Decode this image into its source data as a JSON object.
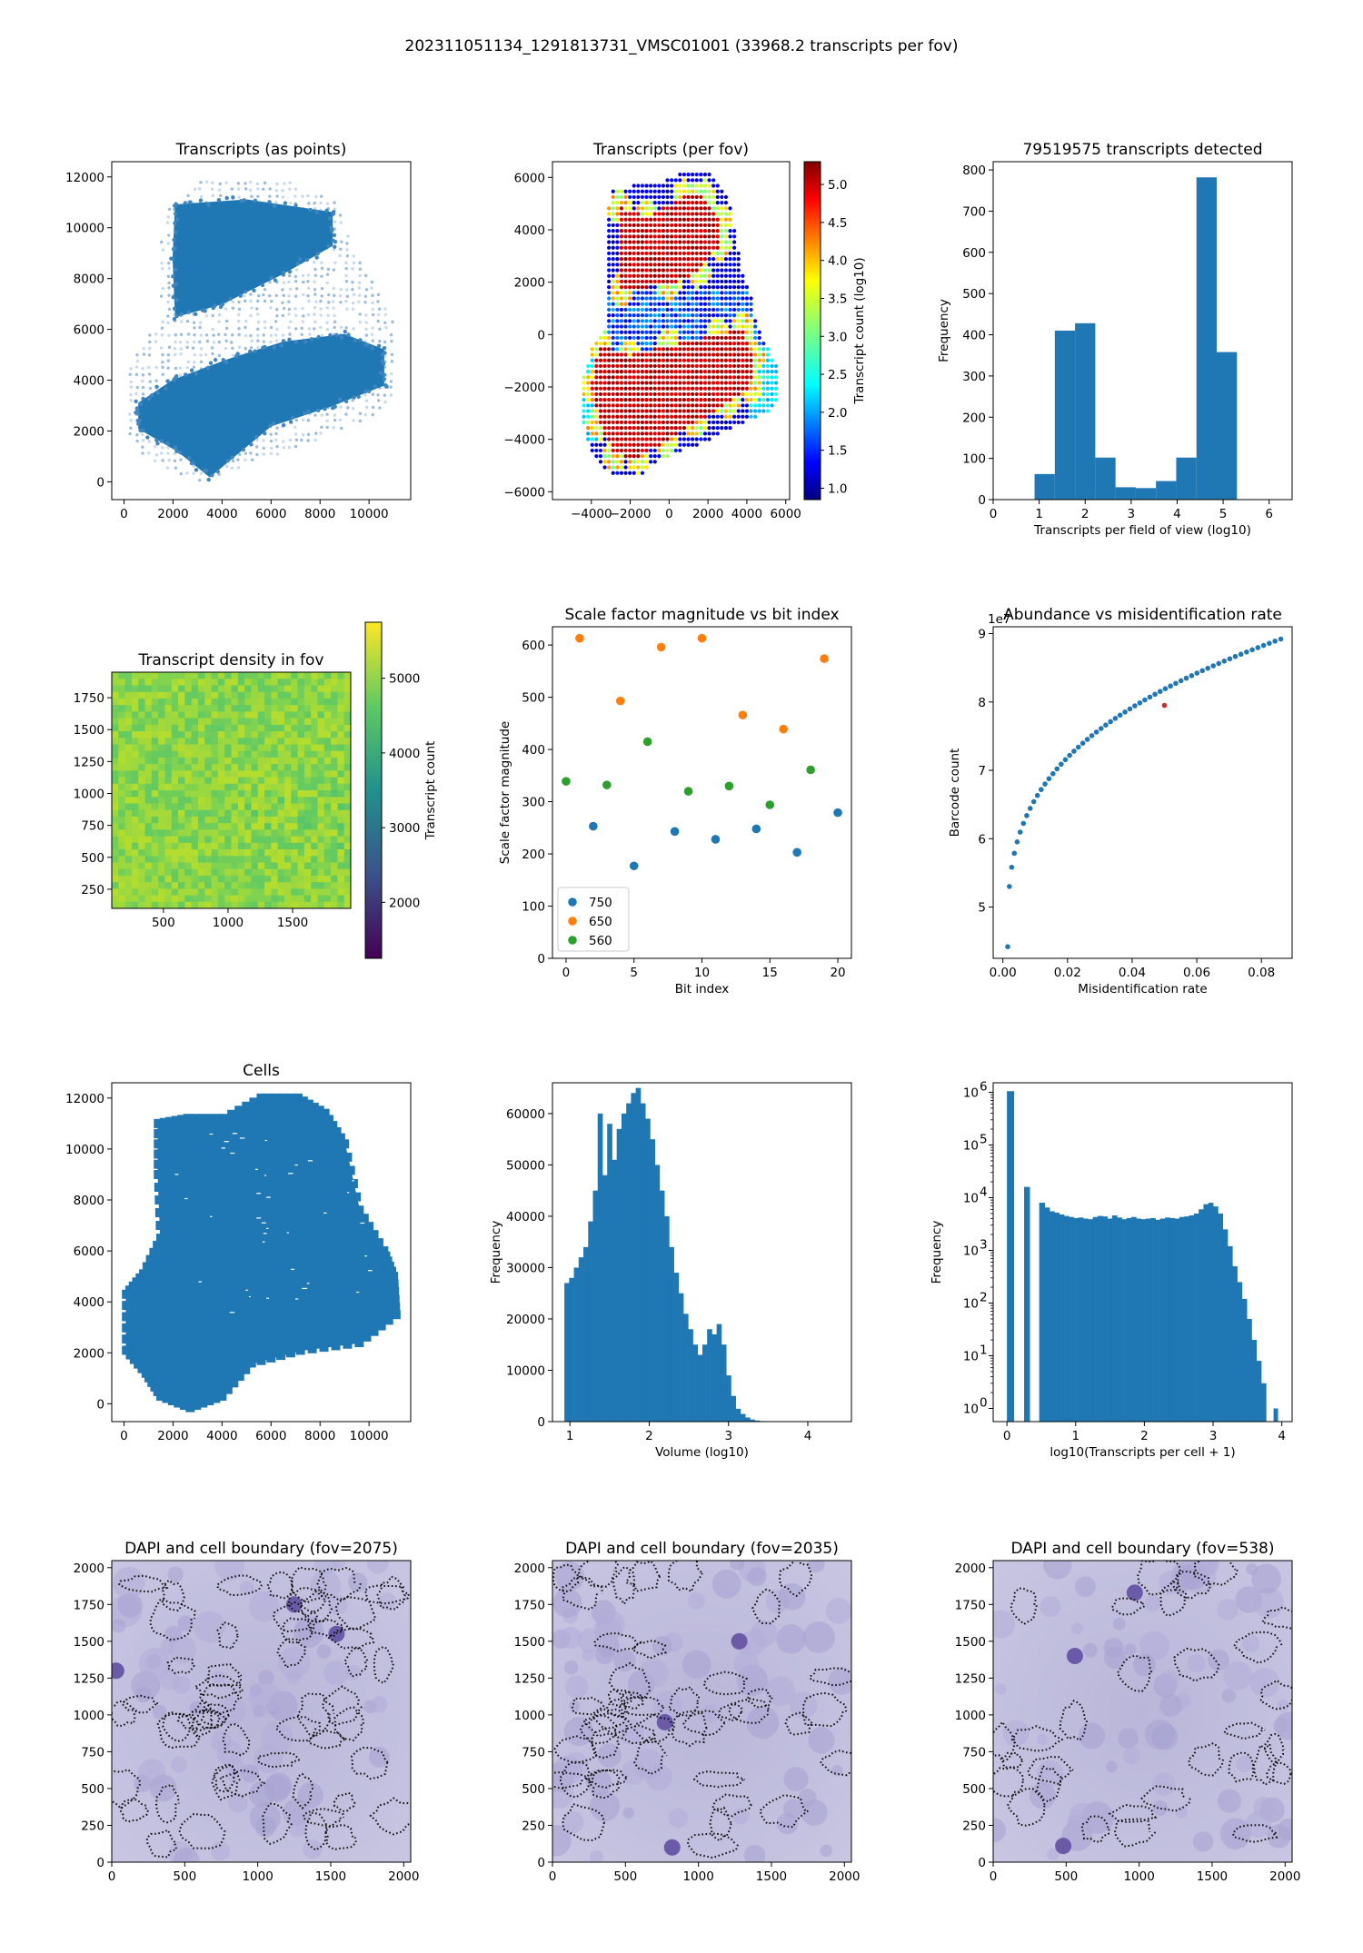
{
  "figure": {
    "suptitle": "202311051134_1291813731_VMSC01001 (33968.2 transcripts per fov)",
    "accent_color": "#1f77b4"
  },
  "chart_data": [
    {
      "id": "transcripts_points",
      "type": "scatter",
      "title": "Transcripts (as points)",
      "xlabel": "",
      "ylabel": "",
      "xlim": [
        -500,
        11700
      ],
      "ylim": [
        -700,
        12600
      ],
      "xticks": [
        0,
        2000,
        4000,
        6000,
        8000,
        10000
      ],
      "yticks": [
        0,
        2000,
        4000,
        6000,
        8000,
        10000,
        12000
      ],
      "regions": [
        {
          "name": "upper dense block",
          "polygon": [
            [
              2100,
              10900
            ],
            [
              5000,
              11100
            ],
            [
              8500,
              10600
            ],
            [
              8500,
              9300
            ],
            [
              6500,
              8200
            ],
            [
              4000,
              7000
            ],
            [
              2100,
              6500
            ],
            [
              2000,
              8800
            ]
          ]
        },
        {
          "name": "lower dense block",
          "polygon": [
            [
              600,
              3100
            ],
            [
              2000,
              4000
            ],
            [
              4200,
              4800
            ],
            [
              6500,
              5500
            ],
            [
              9000,
              5800
            ],
            [
              10600,
              5200
            ],
            [
              10600,
              3800
            ],
            [
              8500,
              3000
            ],
            [
              6000,
              2200
            ],
            [
              3500,
              200
            ],
            [
              2200,
              1200
            ],
            [
              600,
              2100
            ]
          ]
        }
      ],
      "grid": false
    },
    {
      "id": "transcripts_per_fov",
      "type": "scatter",
      "title": "Transcripts (per fov)",
      "xlabel": "",
      "ylabel": "",
      "xlim": [
        -6000,
        6200
      ],
      "ylim": [
        -6300,
        6600
      ],
      "xticks": [
        -4000,
        -2000,
        0,
        2000,
        4000,
        6000
      ],
      "xticklabels": [
        "−4000",
        "−2000",
        "0",
        "2000",
        "4000",
        "6000"
      ],
      "yticks": [
        -6000,
        -4000,
        -2000,
        0,
        2000,
        4000,
        6000
      ],
      "yticklabels": [
        "−6000",
        "−4000",
        "−2000",
        "0",
        "2000",
        "4000",
        "6000"
      ],
      "colorbar": {
        "label": "Transcript count (log10)",
        "range": [
          0.85,
          5.3
        ],
        "ticks": [
          1.0,
          1.5,
          2.0,
          2.5,
          3.0,
          3.5,
          4.0,
          4.5,
          5.0
        ],
        "ticklabels": [
          "1.0",
          "1.5",
          "2.0",
          "2.5",
          "3.0",
          "3.5",
          "4.0",
          "4.5",
          "5.0"
        ],
        "colormap": "jet"
      },
      "grid": false
    },
    {
      "id": "transcripts_hist",
      "type": "bar",
      "title": "79519575 transcripts detected",
      "xlabel": "Transcripts per field of view (log10)",
      "ylabel": "Frequency",
      "xlim": [
        0,
        6.5
      ],
      "ylim": [
        0,
        820
      ],
      "xticks": [
        0,
        1,
        2,
        3,
        4,
        5,
        6
      ],
      "yticks": [
        0,
        100,
        200,
        300,
        400,
        500,
        600,
        700,
        800
      ],
      "bin_edges": [
        0.9,
        1.34,
        1.78,
        2.22,
        2.66,
        3.1,
        3.54,
        3.98,
        4.42,
        4.86,
        5.3
      ],
      "values": [
        62,
        410,
        428,
        102,
        30,
        28,
        45,
        102,
        782,
        358
      ],
      "grid": false
    },
    {
      "id": "density_in_fov",
      "type": "heatmap",
      "title": "Transcript density in fov",
      "xlabel": "",
      "ylabel": "",
      "xlim": [
        100,
        1950
      ],
      "ylim": [
        100,
        1950
      ],
      "xticks": [
        500,
        1000,
        1500
      ],
      "yticks": [
        250,
        500,
        750,
        1000,
        1250,
        1500,
        1750
      ],
      "colorbar": {
        "label": "Transcript count",
        "range": [
          1250,
          5750
        ],
        "ticks": [
          2000,
          3000,
          4000,
          5000
        ],
        "colormap": "viridis"
      },
      "value_range": [
        4100,
        5200
      ],
      "grid": false
    },
    {
      "id": "scale_factor",
      "type": "scatter",
      "title": "Scale factor magnitude vs bit index",
      "xlabel": "Bit index",
      "ylabel": "Scale factor magnitude",
      "xlim": [
        -1,
        21
      ],
      "ylim": [
        0,
        635
      ],
      "xticks": [
        0,
        5,
        10,
        15,
        20
      ],
      "yticks": [
        0,
        100,
        200,
        300,
        400,
        500,
        600
      ],
      "legend_position": "lower-left",
      "series": [
        {
          "name": "750",
          "color": "#1f77b4",
          "x": [
            2,
            5,
            8,
            11,
            14,
            17,
            20
          ],
          "y": [
            253,
            177,
            243,
            228,
            248,
            203,
            279
          ]
        },
        {
          "name": "650",
          "color": "#ff7f0e",
          "x": [
            1,
            4,
            7,
            10,
            13,
            16,
            19
          ],
          "y": [
            613,
            493,
            596,
            613,
            466,
            439,
            574
          ]
        },
        {
          "name": "560",
          "color": "#2ca02c",
          "x": [
            0,
            3,
            6,
            9,
            12,
            15,
            18
          ],
          "y": [
            339,
            332,
            415,
            320,
            330,
            294,
            361
          ]
        }
      ],
      "grid": false
    },
    {
      "id": "abundance_misid",
      "type": "scatter",
      "title": "Abundance vs misidentification rate",
      "xlabel": "Misidentification rate",
      "ylabel": "Barcode count",
      "offset_label": "1e7",
      "xlim": [
        -0.003,
        0.0895
      ],
      "ylim": [
        4.25,
        9.1
      ],
      "xticks": [
        0.0,
        0.02,
        0.04,
        0.06,
        0.08
      ],
      "xticklabels": [
        "0.00",
        "0.02",
        "0.04",
        "0.06",
        "0.08"
      ],
      "yticks": [
        5,
        6,
        7,
        8,
        9
      ],
      "curve": {
        "x_start": 0.0015,
        "x_end": 0.086,
        "y_start": 4.42,
        "y_end": 8.92,
        "exponent": 0.32,
        "points": 60
      },
      "highlight": {
        "x": 0.05,
        "y": 7.95,
        "color": "#d62728"
      },
      "grid": false
    },
    {
      "id": "cells",
      "type": "scatter",
      "title": "Cells",
      "xlabel": "",
      "ylabel": "",
      "xlim": [
        -500,
        11700
      ],
      "ylim": [
        -700,
        12600
      ],
      "xticks": [
        0,
        2000,
        4000,
        6000,
        8000,
        10000
      ],
      "yticks": [
        0,
        2000,
        4000,
        6000,
        8000,
        10000,
        12000
      ],
      "regions": [
        {
          "name": "tissue",
          "polygon": [
            [
              1400,
              11000
            ],
            [
              2600,
              11200
            ],
            [
              4100,
              11200
            ],
            [
              5600,
              12000
            ],
            [
              7100,
              12000
            ],
            [
              8200,
              11400
            ],
            [
              9000,
              10200
            ],
            [
              9600,
              7600
            ],
            [
              10600,
              6000
            ],
            [
              11000,
              5000
            ],
            [
              11100,
              3500
            ],
            [
              9600,
              2400
            ],
            [
              7200,
              2100
            ],
            [
              5200,
              1600
            ],
            [
              4000,
              300
            ],
            [
              2700,
              -150
            ],
            [
              1500,
              300
            ],
            [
              900,
              1200
            ],
            [
              100,
              2100
            ],
            [
              100,
              4300
            ],
            [
              800,
              5100
            ],
            [
              1500,
              6500
            ],
            [
              1400,
              9000
            ]
          ]
        }
      ],
      "grid": false
    },
    {
      "id": "volume_hist",
      "type": "bar",
      "title": "",
      "xlabel": "Volume (log10)",
      "ylabel": "Frequency",
      "xlim": [
        0.78,
        4.55
      ],
      "ylim": [
        0,
        66000
      ],
      "xticks": [
        1,
        2,
        3,
        4
      ],
      "yticks": [
        0,
        10000,
        20000,
        30000,
        40000,
        50000,
        60000
      ],
      "bin_start": 0.93,
      "bin_width": 0.06,
      "values": [
        27000,
        28000,
        30000,
        32000,
        34000,
        39000,
        45000,
        60000,
        48000,
        58000,
        51000,
        57000,
        60000,
        62000,
        64000,
        65000,
        62000,
        59000,
        55000,
        50000,
        45000,
        40000,
        34000,
        29000,
        25000,
        21000,
        18000,
        15000,
        13000,
        15000,
        18000,
        17000,
        19000,
        15000,
        9000,
        5000,
        2500,
        1500,
        800,
        400,
        200,
        100,
        60,
        40,
        20,
        10,
        5,
        3
      ],
      "grid": false
    },
    {
      "id": "transcripts_per_cell",
      "type": "bar",
      "title": "",
      "xlabel": "log10(Transcripts per cell + 1)",
      "ylabel": "Frequency",
      "log_y": true,
      "xlim": [
        -0.2,
        4.15
      ],
      "ylim_exp": [
        -0.25,
        6.18
      ],
      "xticks": [
        0,
        1,
        2,
        3,
        4
      ],
      "yticks_exp": [
        0,
        1,
        2,
        3,
        4,
        5,
        6
      ],
      "ytick_base": "10",
      "bars": [
        {
          "x0": 0.0,
          "x1": 0.1,
          "value": 1050000
        },
        {
          "x0": 0.25,
          "x1": 0.33,
          "value": 16000
        },
        {
          "x0": 0.47,
          "x1": 0.55,
          "value": 8000
        }
      ],
      "continuous": {
        "x_start": 0.55,
        "bin_width": 0.07,
        "values": [
          6500,
          5500,
          5200,
          4800,
          4500,
          4300,
          4100,
          4200,
          4000,
          3900,
          4300,
          4500,
          4400,
          4000,
          4600,
          4200,
          3900,
          4100,
          4300,
          4000,
          3900,
          4000,
          4100,
          3800,
          4000,
          4200,
          4100,
          4000,
          4300,
          4400,
          4600,
          5000,
          6000,
          7500,
          8000,
          6800,
          5000,
          2500,
          1200,
          500,
          250,
          120,
          50,
          20,
          8,
          3
        ]
      },
      "tail": {
        "x0": 3.88,
        "x1": 3.94,
        "value": 1
      },
      "grid": false
    },
    {
      "id": "dapi_2075",
      "type": "heatmap",
      "title": "DAPI and cell boundary (fov=2075)",
      "xlabel": "",
      "ylabel": "",
      "xlim": [
        0,
        2048
      ],
      "ylim": [
        0,
        2048
      ],
      "xticks": [
        0,
        500,
        1000,
        1500,
        2000
      ],
      "yticks": [
        0,
        250,
        500,
        750,
        1000,
        1250,
        1500,
        1750,
        2000
      ],
      "grid": false
    },
    {
      "id": "dapi_2035",
      "type": "heatmap",
      "title": "DAPI and cell boundary (fov=2035)",
      "xlabel": "",
      "ylabel": "",
      "xlim": [
        0,
        2048
      ],
      "ylim": [
        0,
        2048
      ],
      "xticks": [
        0,
        500,
        1000,
        1500,
        2000
      ],
      "yticks": [
        0,
        250,
        500,
        750,
        1000,
        1250,
        1500,
        1750,
        2000
      ],
      "grid": false
    },
    {
      "id": "dapi_538",
      "type": "heatmap",
      "title": "DAPI and cell boundary (fov=538)",
      "xlabel": "",
      "ylabel": "",
      "xlim": [
        0,
        2048
      ],
      "ylim": [
        0,
        2048
      ],
      "xticks": [
        0,
        500,
        1000,
        1500,
        2000
      ],
      "yticks": [
        0,
        250,
        500,
        750,
        1000,
        1250,
        1500,
        1750,
        2000
      ],
      "grid": false
    }
  ]
}
